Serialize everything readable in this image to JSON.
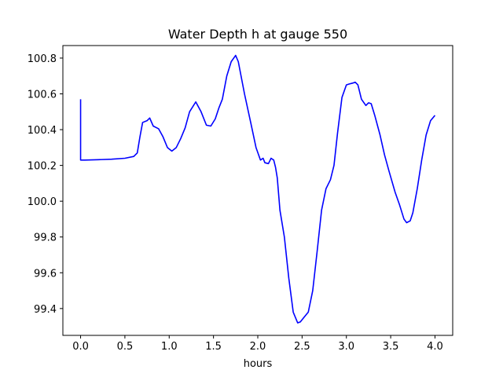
{
  "chart_data": {
    "type": "line",
    "title": "Water Depth h at gauge 550",
    "xlabel": "hours",
    "ylabel": "",
    "xlim": [
      -0.2,
      4.2
    ],
    "ylim": [
      99.25,
      100.87
    ],
    "xticks": [
      0.0,
      0.5,
      1.0,
      1.5,
      2.0,
      2.5,
      3.0,
      3.5,
      4.0
    ],
    "xtick_labels": [
      "0.0",
      "0.5",
      "1.0",
      "1.5",
      "2.0",
      "2.5",
      "3.0",
      "3.5",
      "4.0"
    ],
    "yticks": [
      99.4,
      99.6,
      99.8,
      100.0,
      100.2,
      100.4,
      100.6,
      100.8
    ],
    "ytick_labels": [
      "99.4",
      "99.6",
      "99.8",
      "100.0",
      "100.2",
      "100.4",
      "100.6",
      "100.8"
    ],
    "grid": false,
    "series": [
      {
        "color": "#0000ff",
        "x": [
          0.0,
          0.0,
          0.05,
          0.2,
          0.35,
          0.5,
          0.6,
          0.64,
          0.67,
          0.7,
          0.75,
          0.78,
          0.82,
          0.88,
          0.93,
          0.98,
          1.03,
          1.08,
          1.13,
          1.18,
          1.23,
          1.3,
          1.36,
          1.42,
          1.47,
          1.52,
          1.56,
          1.6,
          1.65,
          1.7,
          1.75,
          1.78,
          1.85,
          1.92,
          1.98,
          2.03,
          2.06,
          2.08,
          2.12,
          2.15,
          2.18,
          2.2,
          2.22,
          2.25,
          2.3,
          2.35,
          2.4,
          2.45,
          2.48,
          2.52,
          2.57,
          2.62,
          2.67,
          2.72,
          2.77,
          2.82,
          2.86,
          2.9,
          2.95,
          3.0,
          3.03,
          3.07,
          3.1,
          3.13,
          3.17,
          3.22,
          3.25,
          3.28,
          3.32,
          3.38,
          3.43,
          3.48,
          3.55,
          3.6,
          3.65,
          3.68,
          3.72,
          3.75,
          3.8,
          3.85,
          3.9,
          3.95,
          4.0
        ],
        "y": [
          100.57,
          100.23,
          100.23,
          100.232,
          100.235,
          100.24,
          100.25,
          100.27,
          100.36,
          100.44,
          100.45,
          100.465,
          100.42,
          100.405,
          100.36,
          100.3,
          100.28,
          100.3,
          100.35,
          100.41,
          100.5,
          100.555,
          100.5,
          100.425,
          100.42,
          100.46,
          100.52,
          100.57,
          100.7,
          100.78,
          100.815,
          100.78,
          100.6,
          100.44,
          100.3,
          100.23,
          100.24,
          100.215,
          100.21,
          100.24,
          100.23,
          100.19,
          100.13,
          99.95,
          99.8,
          99.57,
          99.38,
          99.32,
          99.325,
          99.35,
          99.38,
          99.5,
          99.72,
          99.95,
          100.07,
          100.12,
          100.2,
          100.38,
          100.58,
          100.65,
          100.655,
          100.66,
          100.665,
          100.65,
          100.57,
          100.535,
          100.55,
          100.545,
          100.48,
          100.37,
          100.26,
          100.17,
          100.05,
          99.98,
          99.9,
          99.88,
          99.89,
          99.935,
          100.07,
          100.23,
          100.37,
          100.45,
          100.48
        ]
      }
    ]
  }
}
